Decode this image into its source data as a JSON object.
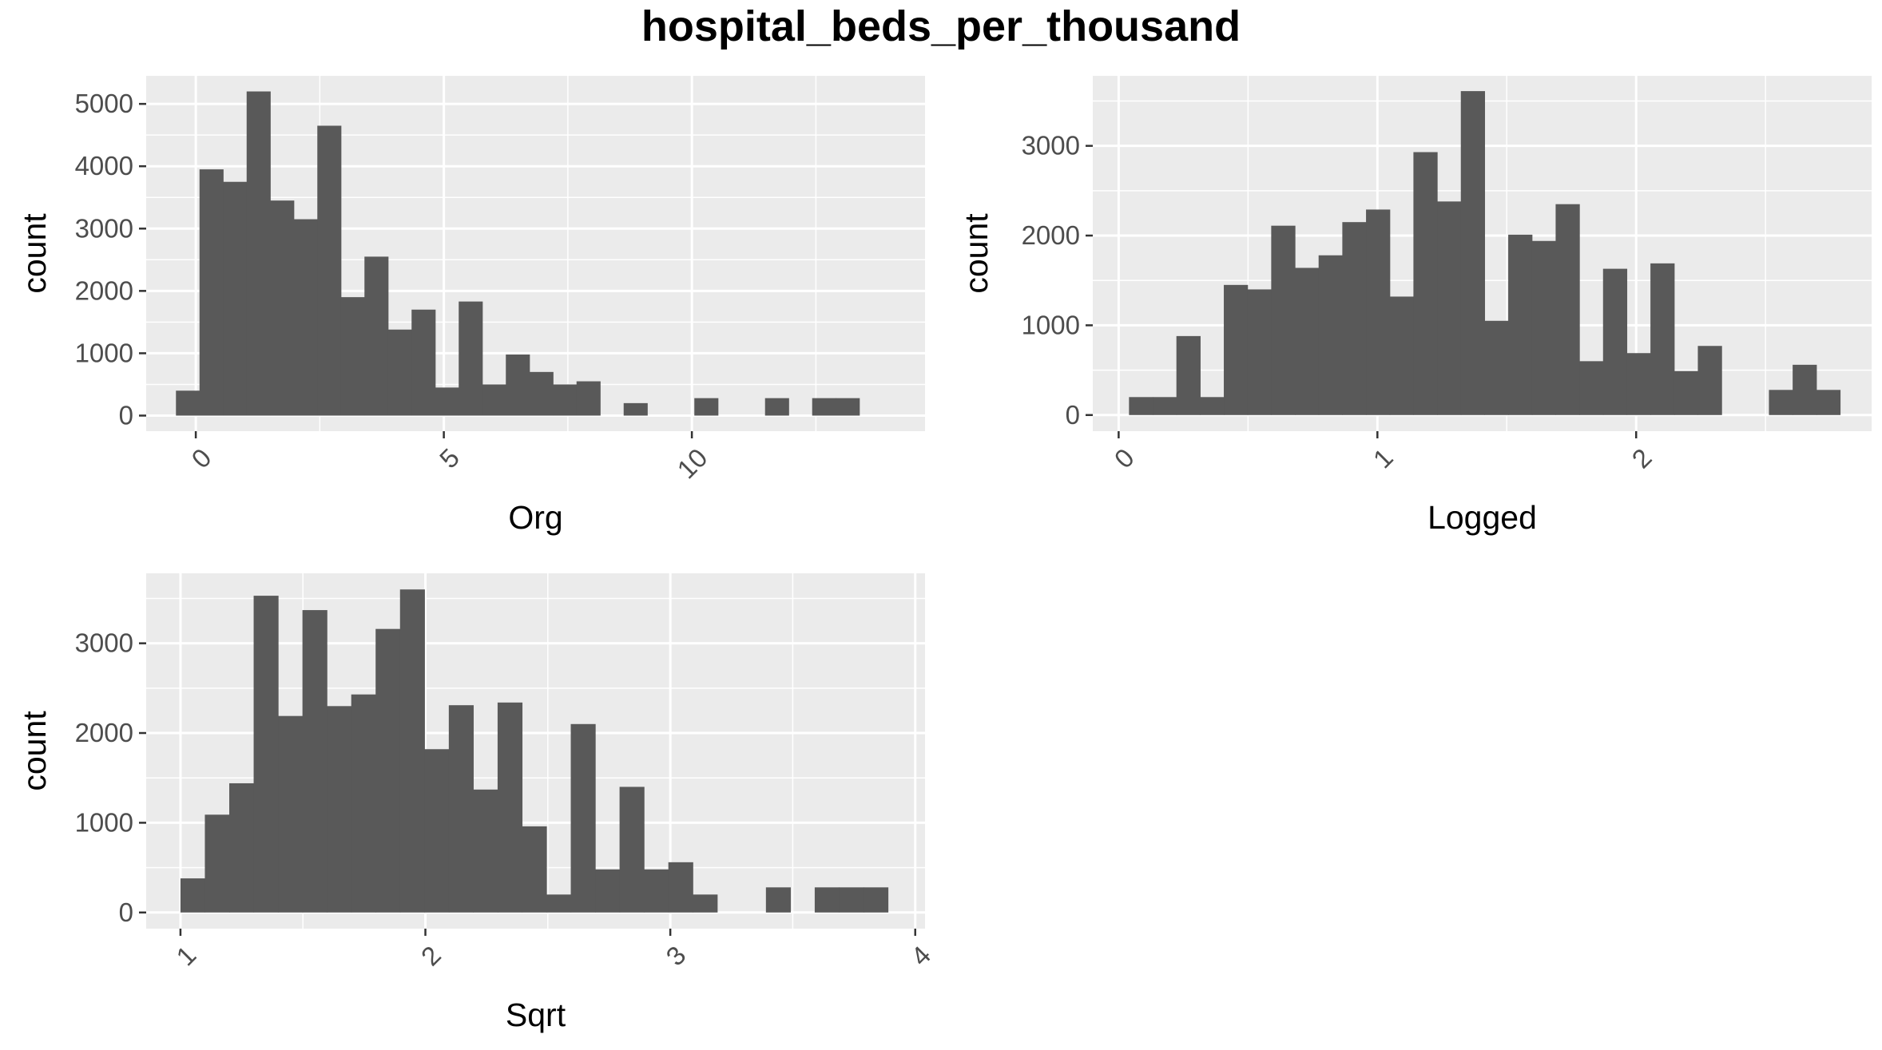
{
  "figure": {
    "title": "hospital_beds_per_thousand"
  },
  "chart_data": [
    {
      "type": "bar",
      "subtype": "histogram",
      "name": "Org",
      "xlabel": "Org",
      "ylabel": "count",
      "xlim": [
        -1.0,
        14.7
      ],
      "ylim": [
        -250,
        5450
      ],
      "x_ticks": [
        0,
        5,
        10
      ],
      "x_tick_labels": [
        "0",
        "5",
        "10"
      ],
      "y_ticks": [
        0,
        1000,
        2000,
        3000,
        4000,
        5000
      ],
      "y_tick_labels": [
        "0",
        "1000",
        "2000",
        "3000",
        "4000",
        "5000"
      ],
      "x_tick_label_rotation": -45,
      "grid": true,
      "bin_width": 0.475,
      "bin_left_start": -0.4,
      "values": [
        400,
        3950,
        3750,
        5200,
        3450,
        3150,
        4650,
        1900,
        2550,
        1380,
        1700,
        450,
        1830,
        500,
        980,
        700,
        500,
        550,
        0,
        200,
        0,
        0,
        280,
        0,
        0,
        280,
        0,
        280,
        280
      ]
    },
    {
      "type": "bar",
      "subtype": "histogram",
      "name": "Logged",
      "xlabel": "Logged",
      "ylabel": "count",
      "xlim": [
        -0.1,
        2.91
      ],
      "ylim": [
        -180,
        3780
      ],
      "x_ticks": [
        0,
        1,
        2
      ],
      "x_tick_labels": [
        "0",
        "1",
        "2"
      ],
      "y_ticks": [
        0,
        1000,
        2000,
        3000
      ],
      "y_tick_labels": [
        "0",
        "1000",
        "2000",
        "3000"
      ],
      "x_tick_label_rotation": -45,
      "grid": true,
      "bin_width": 0.0916,
      "bin_left_start": 0.04,
      "values": [
        200,
        200,
        880,
        200,
        1450,
        1400,
        2110,
        1640,
        1780,
        2150,
        2290,
        1320,
        2930,
        2380,
        3610,
        1050,
        2010,
        1940,
        2350,
        600,
        1630,
        690,
        1690,
        490,
        770,
        0,
        0,
        280,
        560,
        280
      ]
    },
    {
      "type": "bar",
      "subtype": "histogram",
      "name": "Sqrt",
      "xlabel": "Sqrt",
      "ylabel": "count",
      "xlim": [
        0.86,
        4.04
      ],
      "ylim": [
        -180,
        3780
      ],
      "x_ticks": [
        1,
        2,
        3,
        4
      ],
      "x_tick_labels": [
        "1",
        "2",
        "3",
        "4"
      ],
      "y_ticks": [
        0,
        1000,
        2000,
        3000
      ],
      "y_tick_labels": [
        "0",
        "1000",
        "2000",
        "3000"
      ],
      "x_tick_label_rotation": -45,
      "grid": true,
      "bin_width": 0.0996,
      "bin_left_start": 1.0,
      "values": [
        380,
        1090,
        1440,
        3530,
        2190,
        3370,
        2300,
        2430,
        3160,
        3600,
        1820,
        2310,
        1370,
        2340,
        960,
        200,
        2100,
        480,
        1400,
        480,
        560,
        200,
        0,
        0,
        280,
        0,
        280,
        280,
        280
      ]
    }
  ]
}
